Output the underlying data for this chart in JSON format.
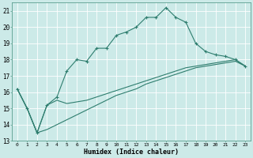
{
  "xlabel": "Humidex (Indice chaleur)",
  "background_color": "#cceae8",
  "grid_color": "#ffffff",
  "line_color": "#2e7d6e",
  "xlim": [
    -0.5,
    23.5
  ],
  "ylim": [
    13,
    21.5
  ],
  "xticks": [
    0,
    1,
    2,
    3,
    4,
    5,
    6,
    7,
    8,
    9,
    10,
    11,
    12,
    13,
    14,
    15,
    16,
    17,
    18,
    19,
    20,
    21,
    22,
    23
  ],
  "yticks": [
    13,
    14,
    15,
    16,
    17,
    18,
    19,
    20,
    21
  ],
  "line1_x": [
    0,
    1,
    2,
    3,
    4,
    5,
    6,
    7,
    8,
    9,
    10,
    11,
    12,
    13,
    14,
    15,
    16,
    17,
    18,
    19,
    20,
    21,
    22,
    23
  ],
  "line1_y": [
    16.2,
    15.0,
    13.5,
    15.2,
    15.7,
    17.3,
    18.0,
    17.9,
    18.7,
    18.7,
    19.5,
    19.7,
    20.0,
    20.6,
    20.6,
    21.2,
    20.6,
    20.3,
    19.0,
    18.5,
    18.3,
    18.2,
    18.0,
    17.6
  ],
  "line2_x": [
    0,
    1,
    2,
    3,
    4,
    5,
    6,
    7,
    8,
    9,
    10,
    11,
    12,
    13,
    14,
    15,
    16,
    17,
    18,
    19,
    20,
    21,
    22,
    23
  ],
  "line2_y": [
    16.2,
    15.0,
    13.5,
    15.2,
    15.5,
    15.3,
    15.4,
    15.5,
    15.7,
    15.9,
    16.1,
    16.3,
    16.5,
    16.7,
    16.9,
    17.1,
    17.3,
    17.5,
    17.6,
    17.7,
    17.8,
    17.9,
    18.0,
    17.6
  ],
  "line3_x": [
    0,
    1,
    2,
    3,
    4,
    5,
    6,
    7,
    8,
    9,
    10,
    11,
    12,
    13,
    14,
    15,
    16,
    17,
    18,
    19,
    20,
    21,
    22,
    23
  ],
  "line3_y": [
    16.2,
    15.0,
    13.5,
    13.7,
    14.0,
    14.3,
    14.6,
    14.9,
    15.2,
    15.5,
    15.8,
    16.0,
    16.2,
    16.5,
    16.7,
    16.9,
    17.1,
    17.3,
    17.5,
    17.6,
    17.7,
    17.8,
    17.9,
    17.6
  ]
}
